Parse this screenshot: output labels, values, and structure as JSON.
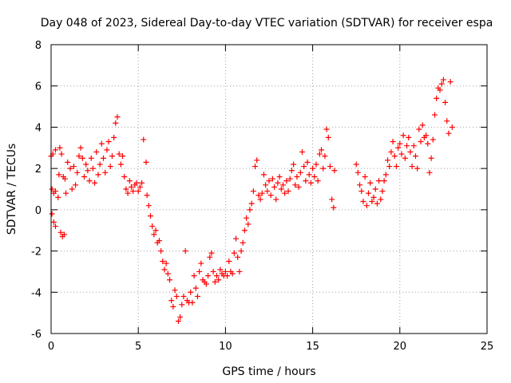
{
  "chart_data": {
    "type": "scatter",
    "title": "Day 048 of 2023, Sidereal Day-to-day VTEC variation (SDTVAR) for receiver espa",
    "xlabel": "GPS time / hours",
    "ylabel": "SDTVAR / TECUs",
    "xlim": [
      0,
      25
    ],
    "ylim": [
      -6,
      8
    ],
    "x_ticks": [
      "0",
      "5",
      "10",
      "15",
      "20",
      "25"
    ],
    "y_ticks": [
      "-6",
      "-4",
      "-2",
      "0",
      "2",
      "4",
      "6",
      "8"
    ],
    "grid": true,
    "marker": "plus",
    "series": [
      {
        "name": "SDTVAR",
        "color": "#ff0000",
        "points": [
          [
            0.0,
            2.6
          ],
          [
            0.1,
            2.7
          ],
          [
            0.25,
            2.9
          ],
          [
            0.05,
            1.0
          ],
          [
            0.15,
            0.8
          ],
          [
            0.25,
            0.9
          ],
          [
            0.05,
            -0.2
          ],
          [
            0.15,
            -0.6
          ],
          [
            0.25,
            -0.8
          ],
          [
            0.4,
            0.6
          ],
          [
            0.45,
            1.7
          ],
          [
            0.5,
            3.0
          ],
          [
            0.55,
            -1.1
          ],
          [
            0.65,
            -1.3
          ],
          [
            0.75,
            -1.2
          ],
          [
            0.6,
            2.7
          ],
          [
            0.7,
            1.6
          ],
          [
            0.8,
            1.5
          ],
          [
            0.85,
            0.8
          ],
          [
            0.95,
            2.3
          ],
          [
            1.1,
            2.0
          ],
          [
            1.2,
            1.0
          ],
          [
            1.3,
            2.1
          ],
          [
            1.4,
            1.2
          ],
          [
            1.5,
            1.8
          ],
          [
            1.6,
            2.6
          ],
          [
            1.7,
            3.0
          ],
          [
            1.8,
            2.5
          ],
          [
            1.9,
            1.6
          ],
          [
            2.0,
            2.2
          ],
          [
            2.1,
            1.9
          ],
          [
            2.2,
            1.4
          ],
          [
            2.3,
            2.5
          ],
          [
            2.4,
            2.0
          ],
          [
            2.5,
            1.3
          ],
          [
            2.6,
            2.8
          ],
          [
            2.7,
            1.7
          ],
          [
            2.8,
            2.2
          ],
          [
            2.9,
            3.2
          ],
          [
            3.0,
            2.5
          ],
          [
            3.1,
            1.8
          ],
          [
            3.2,
            2.9
          ],
          [
            3.3,
            3.3
          ],
          [
            3.4,
            2.1
          ],
          [
            3.5,
            2.6
          ],
          [
            3.6,
            3.5
          ],
          [
            3.7,
            4.2
          ],
          [
            3.8,
            4.5
          ],
          [
            3.9,
            2.7
          ],
          [
            4.0,
            2.2
          ],
          [
            4.1,
            2.6
          ],
          [
            4.2,
            1.6
          ],
          [
            4.3,
            1.0
          ],
          [
            4.4,
            0.8
          ],
          [
            4.5,
            1.4
          ],
          [
            4.6,
            1.1
          ],
          [
            4.7,
            0.9
          ],
          [
            4.8,
            1.2
          ],
          [
            4.9,
            1.3
          ],
          [
            5.0,
            0.9
          ],
          [
            5.1,
            1.1
          ],
          [
            5.2,
            1.3
          ],
          [
            5.3,
            3.4
          ],
          [
            5.45,
            2.3
          ],
          [
            5.5,
            0.7
          ],
          [
            5.6,
            0.2
          ],
          [
            5.7,
            -0.3
          ],
          [
            5.8,
            -0.8
          ],
          [
            5.9,
            -1.2
          ],
          [
            6.0,
            -1.0
          ],
          [
            6.1,
            -1.6
          ],
          [
            6.2,
            -1.5
          ],
          [
            6.3,
            -2.0
          ],
          [
            6.4,
            -2.5
          ],
          [
            6.5,
            -2.9
          ],
          [
            6.6,
            -2.6
          ],
          [
            6.7,
            -3.1
          ],
          [
            6.8,
            -3.4
          ],
          [
            6.9,
            -4.4
          ],
          [
            7.0,
            -4.7
          ],
          [
            7.1,
            -3.9
          ],
          [
            7.2,
            -4.2
          ],
          [
            7.3,
            -5.4
          ],
          [
            7.4,
            -5.2
          ],
          [
            7.5,
            -4.6
          ],
          [
            7.6,
            -4.2
          ],
          [
            7.7,
            -2.0
          ],
          [
            7.8,
            -4.4
          ],
          [
            7.9,
            -4.5
          ],
          [
            8.0,
            -4.0
          ],
          [
            8.1,
            -4.5
          ],
          [
            8.2,
            -3.2
          ],
          [
            8.3,
            -3.8
          ],
          [
            8.4,
            -4.2
          ],
          [
            8.5,
            -3.0
          ],
          [
            8.6,
            -2.6
          ],
          [
            8.7,
            -3.4
          ],
          [
            8.8,
            -3.5
          ],
          [
            8.9,
            -3.6
          ],
          [
            9.0,
            -3.2
          ],
          [
            9.1,
            -2.3
          ],
          [
            9.2,
            -2.1
          ],
          [
            9.3,
            -3.0
          ],
          [
            9.4,
            -3.5
          ],
          [
            9.5,
            -3.2
          ],
          [
            9.6,
            -3.4
          ],
          [
            9.7,
            -2.9
          ],
          [
            9.8,
            -3.1
          ],
          [
            9.9,
            -3.2
          ],
          [
            10.0,
            -3.0
          ],
          [
            10.1,
            -3.2
          ],
          [
            10.2,
            -2.5
          ],
          [
            10.3,
            -3.0
          ],
          [
            10.4,
            -3.1
          ],
          [
            10.5,
            -2.1
          ],
          [
            10.6,
            -1.4
          ],
          [
            10.7,
            -2.3
          ],
          [
            10.8,
            -3.0
          ],
          [
            10.9,
            -2.0
          ],
          [
            11.0,
            -1.6
          ],
          [
            11.1,
            -1.0
          ],
          [
            11.2,
            -0.4
          ],
          [
            11.3,
            -0.7
          ],
          [
            11.4,
            0.0
          ],
          [
            11.5,
            0.3
          ],
          [
            11.6,
            0.9
          ],
          [
            11.7,
            2.1
          ],
          [
            11.8,
            2.4
          ],
          [
            11.9,
            0.7
          ],
          [
            12.0,
            0.5
          ],
          [
            12.1,
            0.8
          ],
          [
            12.2,
            1.7
          ],
          [
            12.3,
            1.2
          ],
          [
            12.4,
            0.9
          ],
          [
            12.5,
            1.4
          ],
          [
            12.6,
            0.7
          ],
          [
            12.7,
            1.5
          ],
          [
            12.8,
            1.1
          ],
          [
            12.9,
            0.5
          ],
          [
            13.0,
            1.3
          ],
          [
            13.1,
            1.6
          ],
          [
            13.2,
            1.0
          ],
          [
            13.3,
            1.2
          ],
          [
            13.4,
            0.8
          ],
          [
            13.5,
            1.4
          ],
          [
            13.6,
            0.9
          ],
          [
            13.7,
            1.5
          ],
          [
            13.8,
            1.9
          ],
          [
            13.9,
            2.2
          ],
          [
            14.0,
            1.2
          ],
          [
            14.1,
            1.6
          ],
          [
            14.2,
            1.1
          ],
          [
            14.3,
            1.8
          ],
          [
            14.4,
            2.8
          ],
          [
            14.5,
            2.1
          ],
          [
            14.6,
            1.4
          ],
          [
            14.7,
            2.3
          ],
          [
            14.8,
            1.7
          ],
          [
            14.9,
            1.3
          ],
          [
            15.0,
            2.0
          ],
          [
            15.1,
            1.6
          ],
          [
            15.2,
            2.2
          ],
          [
            15.3,
            1.4
          ],
          [
            15.4,
            2.7
          ],
          [
            15.5,
            2.9
          ],
          [
            15.6,
            2.0
          ],
          [
            15.7,
            2.6
          ],
          [
            15.8,
            3.9
          ],
          [
            15.9,
            3.5
          ],
          [
            16.0,
            2.1
          ],
          [
            16.1,
            0.5
          ],
          [
            16.2,
            0.1
          ],
          [
            16.25,
            1.9
          ],
          [
            17.5,
            2.2
          ],
          [
            17.6,
            1.8
          ],
          [
            17.7,
            1.2
          ],
          [
            17.8,
            0.9
          ],
          [
            17.9,
            0.4
          ],
          [
            18.0,
            1.6
          ],
          [
            18.1,
            0.2
          ],
          [
            18.2,
            0.8
          ],
          [
            18.3,
            1.3
          ],
          [
            18.4,
            0.4
          ],
          [
            18.5,
            0.6
          ],
          [
            18.6,
            1.0
          ],
          [
            18.7,
            0.3
          ],
          [
            18.8,
            1.4
          ],
          [
            18.9,
            0.5
          ],
          [
            19.0,
            0.9
          ],
          [
            19.1,
            1.4
          ],
          [
            19.2,
            1.7
          ],
          [
            19.3,
            2.4
          ],
          [
            19.4,
            2.1
          ],
          [
            19.5,
            2.8
          ],
          [
            19.6,
            3.3
          ],
          [
            19.7,
            2.6
          ],
          [
            19.8,
            2.1
          ],
          [
            19.9,
            3.0
          ],
          [
            20.0,
            3.2
          ],
          [
            20.1,
            2.7
          ],
          [
            20.2,
            3.6
          ],
          [
            20.3,
            2.5
          ],
          [
            20.4,
            3.1
          ],
          [
            20.5,
            3.5
          ],
          [
            20.6,
            2.8
          ],
          [
            20.7,
            2.1
          ],
          [
            20.8,
            3.1
          ],
          [
            20.9,
            2.6
          ],
          [
            21.0,
            2.0
          ],
          [
            21.1,
            3.9
          ],
          [
            21.2,
            3.3
          ],
          [
            21.3,
            4.1
          ],
          [
            21.4,
            3.5
          ],
          [
            21.5,
            3.6
          ],
          [
            21.6,
            3.2
          ],
          [
            21.7,
            1.8
          ],
          [
            21.8,
            2.5
          ],
          [
            21.9,
            3.4
          ],
          [
            22.0,
            4.6
          ],
          [
            22.1,
            5.4
          ],
          [
            22.2,
            5.9
          ],
          [
            22.3,
            5.8
          ],
          [
            22.4,
            6.1
          ],
          [
            22.5,
            6.3
          ],
          [
            22.6,
            5.2
          ],
          [
            22.7,
            4.3
          ],
          [
            22.8,
            3.7
          ],
          [
            22.9,
            6.2
          ],
          [
            23.0,
            4.0
          ]
        ]
      }
    ]
  }
}
